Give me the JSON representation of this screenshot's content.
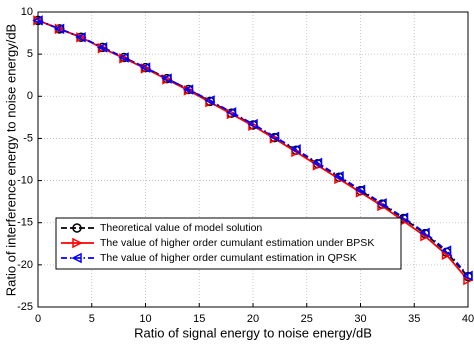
{
  "chart_data": {
    "type": "line",
    "x_label": "Ratio of signal energy to noise energy/dB",
    "y_label": "Ratio of interference energy to noise energy/dB",
    "x": [
      0,
      2,
      4,
      6,
      8,
      10,
      12,
      14,
      16,
      18,
      20,
      22,
      24,
      26,
      28,
      30,
      32,
      34,
      36,
      38,
      40
    ],
    "series": [
      {
        "name": "Theoretical value of model solution",
        "color": "#000000",
        "marker": "circle",
        "linestyle": "dashed",
        "values": [
          9,
          8,
          7,
          5.8,
          4.6,
          3.4,
          2.1,
          0.8,
          -0.6,
          -2,
          -3.4,
          -4.9,
          -6.4,
          -8,
          -9.6,
          -11.2,
          -12.8,
          -14.5,
          -16.3,
          -18.5,
          -21.4
        ]
      },
      {
        "name": "The value of higher order cumulant estimation under BPSK",
        "color": "#ff0000",
        "marker": "triangle-right",
        "linestyle": "solid",
        "values": [
          9,
          8,
          7,
          5.7,
          4.5,
          3.3,
          2,
          0.7,
          -0.7,
          -2.1,
          -3.5,
          -5,
          -6.6,
          -8.2,
          -9.8,
          -11.4,
          -13,
          -14.8,
          -16.6,
          -18.8,
          -21.8
        ]
      },
      {
        "name": "The value of higher order cumulant estimation in QPSK",
        "color": "#0000ff",
        "marker": "triangle-left",
        "linestyle": "dashdot",
        "values": [
          9,
          8,
          7,
          5.8,
          4.6,
          3.4,
          2.1,
          0.8,
          -0.5,
          -1.9,
          -3.3,
          -4.8,
          -6.3,
          -7.9,
          -9.5,
          -11.1,
          -12.7,
          -14.4,
          -16.2,
          -18.3,
          -21.3
        ]
      }
    ],
    "xlim": [
      0,
      40
    ],
    "xticks": [
      0,
      5,
      10,
      15,
      20,
      25,
      30,
      35,
      40
    ],
    "ylim": [
      -25,
      10
    ],
    "yticks": [
      -25,
      -20,
      -15,
      -10,
      -5,
      0,
      5,
      10
    ],
    "grid": true,
    "legend": "lower left"
  }
}
